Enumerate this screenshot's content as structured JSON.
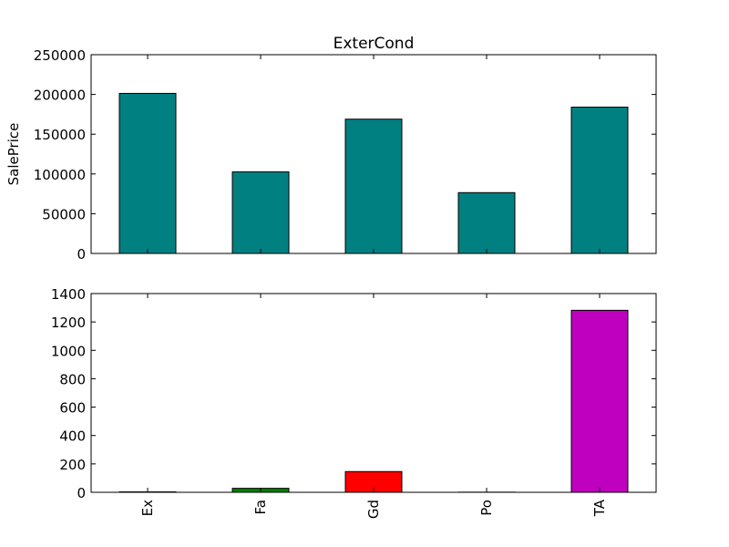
{
  "chart_data": [
    {
      "type": "bar",
      "title": "ExterCond",
      "xlabel": "",
      "ylabel": "SalePrice",
      "categories": [
        "Ex",
        "Fa",
        "Gd",
        "Po",
        "TA"
      ],
      "values": [
        201333,
        102595,
        168897,
        76500,
        184035
      ],
      "ylim": [
        0,
        250000
      ],
      "yticks": [
        0,
        50000,
        100000,
        150000,
        200000,
        250000
      ],
      "grid": false,
      "legend": "none",
      "colors": [
        "#008080",
        "#008080",
        "#008080",
        "#008080",
        "#008080"
      ]
    },
    {
      "type": "bar",
      "title": "",
      "xlabel": "",
      "ylabel": "",
      "categories": [
        "Ex",
        "Fa",
        "Gd",
        "Po",
        "TA"
      ],
      "values": [
        3,
        28,
        146,
        1,
        1282
      ],
      "ylim": [
        0,
        1400
      ],
      "yticks": [
        0,
        200,
        400,
        600,
        800,
        1000,
        1200,
        1400
      ],
      "grid": false,
      "legend": "none",
      "colors": [
        "#0000ff",
        "#008000",
        "#ff0000",
        "#00bfbf",
        "#bf00bf"
      ]
    }
  ]
}
